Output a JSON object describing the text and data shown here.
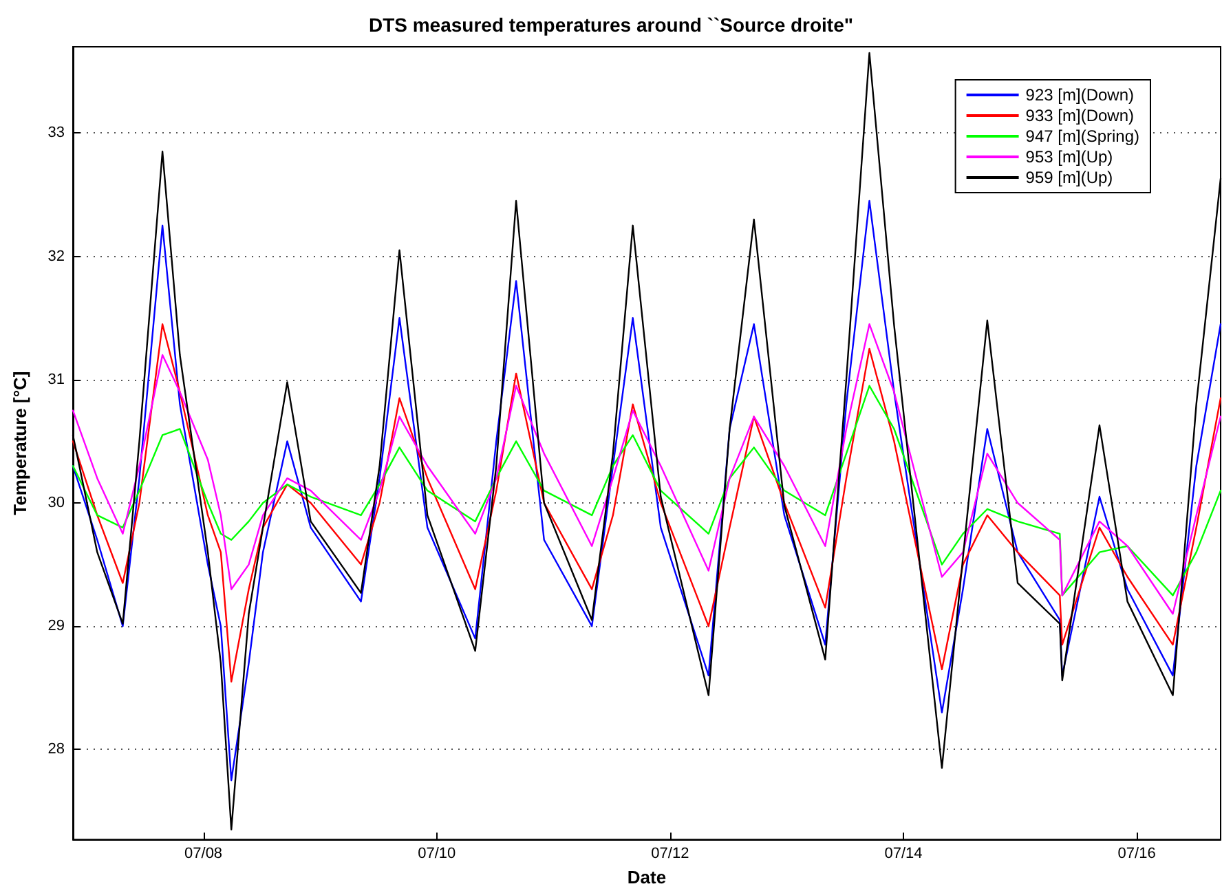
{
  "chart_data": {
    "type": "line",
    "title": "DTS measured temperatures around ``Source droite\"",
    "xlabel": "Date",
    "ylabel": "Temperature [°C]",
    "x": [
      "--07-06T21:10",
      "--07-07T02:10",
      "--07-07T07:25",
      "--07-07T10:50",
      "--07-07T15:35",
      "--07-07T19:10",
      "--07-08T00:55",
      "--07-08T03:35",
      "--07-08T05:45",
      "--07-08T09:20",
      "--07-08T12:15",
      "--07-08T17:15",
      "--07-08T22:05",
      "--07-09T08:25",
      "--07-09T12:15",
      "--07-09T16:20",
      "--07-09T22:05",
      "--07-10T07:55",
      "--07-10T12:15",
      "--07-10T16:20",
      "--07-10T22:05",
      "--07-11T07:55",
      "--07-11T12:15",
      "--07-11T16:20",
      "--07-11T22:05",
      "--07-12T07:55",
      "--07-12T12:15",
      "--07-12T17:15",
      "--07-12T23:30",
      "--07-13T07:55",
      "--07-13T12:15",
      "--07-13T17:00",
      "--07-13T22:05",
      "--07-14T07:55",
      "--07-14T12:15",
      "--07-14T17:15",
      "--07-14T23:30",
      "--07-15T08:10",
      "--07-15T08:40",
      "--07-15T16:20",
      "--07-15T22:05",
      "--07-16T07:25",
      "--07-16T12:15",
      "--07-16T17:15"
    ],
    "series": [
      {
        "name": "923 [m](Down)",
        "color": "#0000ff",
        "values": [
          30.3,
          29.7,
          29.0,
          30.2,
          32.25,
          30.8,
          29.5,
          29.0,
          27.75,
          28.7,
          29.6,
          30.5,
          29.8,
          29.2,
          30.2,
          31.5,
          29.8,
          28.9,
          30.5,
          31.8,
          29.7,
          29.0,
          30.3,
          31.5,
          29.8,
          28.6,
          30.6,
          31.45,
          29.9,
          28.85,
          30.8,
          32.45,
          30.9,
          28.3,
          29.3,
          30.6,
          29.6,
          29.05,
          28.6,
          30.05,
          29.3,
          28.6,
          30.3,
          31.45
        ]
      },
      {
        "name": "933 [m](Down)",
        "color": "#ff0000",
        "values": [
          30.5,
          29.9,
          29.35,
          30.0,
          31.45,
          30.9,
          29.9,
          29.6,
          28.55,
          29.3,
          29.8,
          30.15,
          30.0,
          29.5,
          30.0,
          30.85,
          30.2,
          29.3,
          30.1,
          31.05,
          30.0,
          29.3,
          29.9,
          30.8,
          30.0,
          29.0,
          29.8,
          30.7,
          30.0,
          29.15,
          30.2,
          31.25,
          30.5,
          28.65,
          29.5,
          29.9,
          29.6,
          29.25,
          28.85,
          29.8,
          29.4,
          28.85,
          29.8,
          30.85
        ]
      },
      {
        "name": "947 [m](Spring)",
        "color": "#00ff00",
        "values": [
          30.3,
          29.9,
          29.8,
          30.1,
          30.55,
          30.6,
          30.0,
          29.75,
          29.7,
          29.85,
          30.0,
          30.15,
          30.05,
          29.9,
          30.15,
          30.45,
          30.1,
          29.85,
          30.2,
          30.5,
          30.1,
          29.9,
          30.3,
          30.55,
          30.1,
          29.75,
          30.2,
          30.45,
          30.1,
          29.9,
          30.4,
          30.95,
          30.6,
          29.5,
          29.75,
          29.95,
          29.85,
          29.75,
          29.25,
          29.6,
          29.65,
          29.25,
          29.6,
          30.1
        ]
      },
      {
        "name": "953 [m](Up)",
        "color": "#ff00ff",
        "values": [
          30.75,
          30.2,
          29.75,
          30.3,
          31.2,
          30.9,
          30.35,
          29.9,
          29.3,
          29.5,
          29.9,
          30.2,
          30.1,
          29.7,
          30.1,
          30.7,
          30.3,
          29.75,
          30.2,
          30.95,
          30.4,
          29.65,
          30.2,
          30.75,
          30.3,
          29.45,
          30.2,
          30.7,
          30.3,
          29.65,
          30.6,
          31.45,
          30.9,
          29.4,
          29.6,
          30.4,
          30.0,
          29.7,
          29.25,
          29.85,
          29.65,
          29.1,
          29.9,
          30.7
        ]
      },
      {
        "name": "959 [m](Up)",
        "color": "#000000",
        "values": [
          30.55,
          29.6,
          29.02,
          30.5,
          32.85,
          31.2,
          29.6,
          28.7,
          27.35,
          29.1,
          29.8,
          30.98,
          29.85,
          29.27,
          30.3,
          32.05,
          29.9,
          28.8,
          30.3,
          32.45,
          30.0,
          29.05,
          30.4,
          32.25,
          30.05,
          28.44,
          30.6,
          32.3,
          29.98,
          28.73,
          31.0,
          33.65,
          31.44,
          27.85,
          29.56,
          31.48,
          29.35,
          29.02,
          28.56,
          30.63,
          29.2,
          28.44,
          30.8,
          32.63
        ]
      }
    ],
    "xlim": [
      "--07-06T21:10",
      "--07-16T17:15"
    ],
    "xticks": [
      {
        "value": "--07-08",
        "label": "07/08"
      },
      {
        "value": "--07-10",
        "label": "07/10"
      },
      {
        "value": "--07-12",
        "label": "07/12"
      },
      {
        "value": "--07-14",
        "label": "07/14"
      },
      {
        "value": "--07-16",
        "label": "07/16"
      }
    ],
    "ylim": [
      27.27,
      33.7
    ],
    "yticks": [
      28,
      29,
      30,
      31,
      32,
      33
    ],
    "grid": "y",
    "legend": "top right",
    "line_style": "solid"
  }
}
